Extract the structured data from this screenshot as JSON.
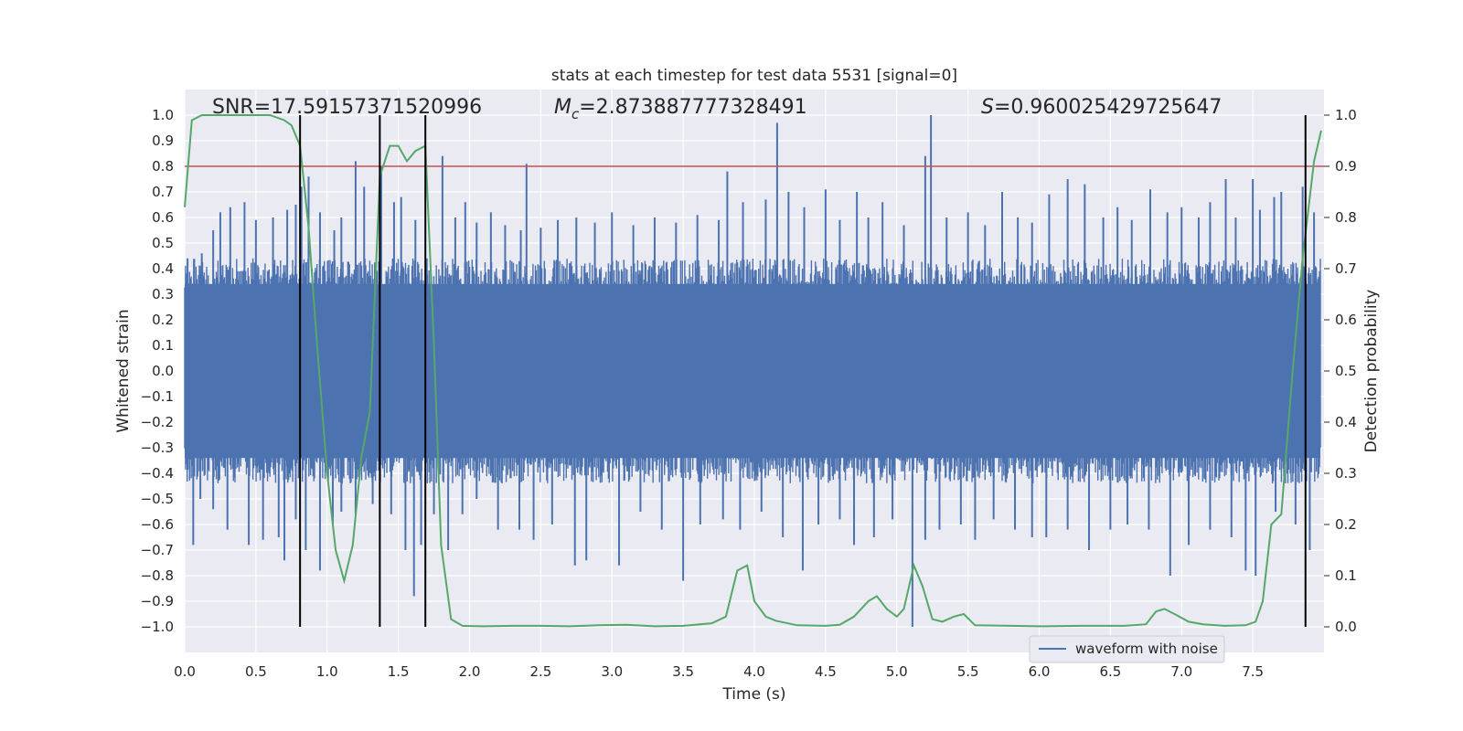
{
  "chart_data": {
    "type": "line",
    "title": "stats at each timestep for test data 5531 [signal=0]",
    "xlabel": "Time (s)",
    "ylabel": "Whitened strain",
    "y2label": "Detection probability",
    "xlim": [
      0.0,
      8.0
    ],
    "ylim": [
      -1.1,
      1.1
    ],
    "y2lim": [
      -0.05,
      1.05
    ],
    "xticks": [
      "0.0",
      "0.5",
      "1.0",
      "1.5",
      "2.0",
      "2.5",
      "3.0",
      "3.5",
      "4.0",
      "4.5",
      "5.0",
      "5.5",
      "6.0",
      "6.5",
      "7.0",
      "7.5"
    ],
    "yticks": [
      "1.0",
      "0.9",
      "0.8",
      "0.7",
      "0.6",
      "0.5",
      "0.4",
      "0.3",
      "0.2",
      "0.1",
      "0.0",
      "-0.1",
      "-0.2",
      "-0.3",
      "-0.4",
      "-0.5",
      "-0.6",
      "-0.7",
      "-0.8",
      "-0.9",
      "-1.0"
    ],
    "y2ticks": [
      "1.0",
      "0.9",
      "0.8",
      "0.7",
      "0.6",
      "0.5",
      "0.4",
      "0.3",
      "0.2",
      "0.1",
      "0.0"
    ],
    "grid": true,
    "legend_position": "lower-right",
    "annotations": {
      "snr": "SNR=17.59157371520996",
      "mc_symbol": "M",
      "mc_sub": "c",
      "mc_value": "=2.873887777328491",
      "s_symbol": "S",
      "s_value": "=0.960025429725647"
    },
    "threshold": {
      "value": 0.9,
      "axis": "y2",
      "color": "#c44e52"
    },
    "vertical_lines": [
      0.81,
      1.37,
      1.69,
      7.87
    ],
    "series": [
      {
        "name": "waveform with noise",
        "color": "#4c72b0",
        "envelope_base": 0.4,
        "spikes_positive": [
          [
            0.02,
            0.44
          ],
          [
            0.12,
            0.46
          ],
          [
            0.2,
            0.55
          ],
          [
            0.25,
            0.62
          ],
          [
            0.32,
            0.64
          ],
          [
            0.42,
            0.66
          ],
          [
            0.5,
            0.59
          ],
          [
            0.62,
            0.6
          ],
          [
            0.72,
            0.63
          ],
          [
            0.78,
            0.65
          ],
          [
            0.82,
            0.72
          ],
          [
            0.87,
            0.76
          ],
          [
            0.95,
            0.62
          ],
          [
            1.05,
            0.55
          ],
          [
            1.1,
            0.6
          ],
          [
            1.2,
            0.82
          ],
          [
            1.26,
            0.72
          ],
          [
            1.38,
            0.8
          ],
          [
            1.47,
            0.66
          ],
          [
            1.52,
            0.68
          ],
          [
            1.62,
            0.59
          ],
          [
            1.7,
            0.44
          ],
          [
            1.81,
            0.84
          ],
          [
            1.9,
            0.6
          ],
          [
            1.97,
            0.66
          ],
          [
            2.05,
            0.58
          ],
          [
            2.15,
            0.62
          ],
          [
            2.25,
            0.57
          ],
          [
            2.36,
            0.55
          ],
          [
            2.4,
            0.81
          ],
          [
            2.5,
            0.56
          ],
          [
            2.62,
            0.59
          ],
          [
            2.75,
            0.6
          ],
          [
            2.88,
            0.58
          ],
          [
            3.0,
            0.62
          ],
          [
            3.15,
            0.57
          ],
          [
            3.3,
            0.6
          ],
          [
            3.45,
            0.58
          ],
          [
            3.6,
            0.61
          ],
          [
            3.75,
            0.59
          ],
          [
            3.81,
            0.78
          ],
          [
            3.92,
            0.66
          ],
          [
            4.08,
            0.67
          ],
          [
            4.16,
            0.97
          ],
          [
            4.24,
            0.7
          ],
          [
            4.35,
            0.64
          ],
          [
            4.5,
            0.71
          ],
          [
            4.6,
            0.59
          ],
          [
            4.72,
            0.7
          ],
          [
            4.8,
            0.6
          ],
          [
            4.9,
            0.66
          ],
          [
            5.05,
            0.57
          ],
          [
            5.2,
            0.84
          ],
          [
            5.24,
            1.0
          ],
          [
            5.35,
            0.6
          ],
          [
            5.5,
            0.62
          ],
          [
            5.62,
            0.57
          ],
          [
            5.74,
            0.7
          ],
          [
            5.85,
            0.6
          ],
          [
            5.95,
            0.58
          ],
          [
            6.07,
            0.69
          ],
          [
            6.2,
            0.75
          ],
          [
            6.32,
            0.73
          ],
          [
            6.45,
            0.6
          ],
          [
            6.55,
            0.64
          ],
          [
            6.65,
            0.59
          ],
          [
            6.78,
            0.71
          ],
          [
            6.9,
            0.62
          ],
          [
            7.0,
            0.64
          ],
          [
            7.12,
            0.6
          ],
          [
            7.2,
            0.66
          ],
          [
            7.31,
            0.75
          ],
          [
            7.38,
            0.6
          ],
          [
            7.5,
            0.75
          ],
          [
            7.55,
            0.63
          ],
          [
            7.65,
            0.68
          ],
          [
            7.7,
            0.7
          ],
          [
            7.85,
            0.72
          ],
          [
            7.93,
            0.62
          ]
        ],
        "spikes_negative": [
          [
            0.06,
            -0.68
          ],
          [
            0.11,
            -0.5
          ],
          [
            0.2,
            -0.54
          ],
          [
            0.3,
            -0.62
          ],
          [
            0.45,
            -0.68
          ],
          [
            0.55,
            -0.66
          ],
          [
            0.66,
            -0.65
          ],
          [
            0.7,
            -0.74
          ],
          [
            0.78,
            -0.58
          ],
          [
            0.85,
            -0.7
          ],
          [
            0.95,
            -0.78
          ],
          [
            1.04,
            -0.6
          ],
          [
            1.1,
            -0.55
          ],
          [
            1.2,
            -0.56
          ],
          [
            1.32,
            -0.52
          ],
          [
            1.45,
            -0.56
          ],
          [
            1.55,
            -0.7
          ],
          [
            1.61,
            -0.88
          ],
          [
            1.66,
            -0.68
          ],
          [
            1.75,
            -0.56
          ],
          [
            1.85,
            -0.7
          ],
          [
            1.95,
            -0.56
          ],
          [
            2.05,
            -0.5
          ],
          [
            2.2,
            -0.62
          ],
          [
            2.35,
            -0.62
          ],
          [
            2.45,
            -0.66
          ],
          [
            2.58,
            -0.6
          ],
          [
            2.74,
            -0.76
          ],
          [
            2.82,
            -0.74
          ],
          [
            3.05,
            -0.76
          ],
          [
            3.2,
            -0.55
          ],
          [
            3.35,
            -0.62
          ],
          [
            3.5,
            -0.82
          ],
          [
            3.62,
            -0.6
          ],
          [
            3.78,
            -0.58
          ],
          [
            3.9,
            -0.62
          ],
          [
            4.05,
            -0.55
          ],
          [
            4.2,
            -0.65
          ],
          [
            4.34,
            -0.78
          ],
          [
            4.45,
            -0.6
          ],
          [
            4.6,
            -0.58
          ],
          [
            4.7,
            -0.68
          ],
          [
            4.84,
            -0.65
          ],
          [
            4.97,
            -0.58
          ],
          [
            5.11,
            -1.0
          ],
          [
            5.2,
            -0.66
          ],
          [
            5.3,
            -0.62
          ],
          [
            5.45,
            -0.6
          ],
          [
            5.55,
            -0.66
          ],
          [
            5.68,
            -0.58
          ],
          [
            5.83,
            -0.62
          ],
          [
            5.95,
            -0.65
          ],
          [
            6.05,
            -0.65
          ],
          [
            6.2,
            -0.62
          ],
          [
            6.35,
            -0.7
          ],
          [
            6.5,
            -0.62
          ],
          [
            6.62,
            -0.6
          ],
          [
            6.77,
            -0.62
          ],
          [
            6.92,
            -0.8
          ],
          [
            7.05,
            -0.68
          ],
          [
            7.2,
            -0.62
          ],
          [
            7.35,
            -0.65
          ],
          [
            7.45,
            -0.78
          ],
          [
            7.52,
            -0.8
          ],
          [
            7.66,
            -0.55
          ],
          [
            7.8,
            -0.6
          ],
          [
            7.9,
            -0.7
          ]
        ]
      },
      {
        "name": "Detection probability",
        "color": "#55a868",
        "axis": "y2",
        "x": [
          0.0,
          0.05,
          0.12,
          0.2,
          0.3,
          0.4,
          0.5,
          0.6,
          0.7,
          0.75,
          0.81,
          0.87,
          0.93,
          1.0,
          1.06,
          1.12,
          1.18,
          1.24,
          1.3,
          1.37,
          1.44,
          1.5,
          1.56,
          1.62,
          1.69,
          1.75,
          1.8,
          1.87,
          1.95,
          2.1,
          2.3,
          2.5,
          2.7,
          2.9,
          3.1,
          3.3,
          3.5,
          3.7,
          3.8,
          3.88,
          3.95,
          4.0,
          4.08,
          4.15,
          4.3,
          4.5,
          4.6,
          4.7,
          4.8,
          4.86,
          4.93,
          5.0,
          5.05,
          5.12,
          5.18,
          5.25,
          5.32,
          5.4,
          5.47,
          5.55,
          5.8,
          6.0,
          6.3,
          6.6,
          6.75,
          6.82,
          6.88,
          6.95,
          7.05,
          7.15,
          7.3,
          7.45,
          7.52,
          7.57,
          7.63,
          7.7,
          7.78,
          7.85,
          7.93,
          7.98
        ],
        "values": [
          0.82,
          0.99,
          1.0,
          1.0,
          1.0,
          1.0,
          1.0,
          1.0,
          0.99,
          0.98,
          0.94,
          0.78,
          0.55,
          0.3,
          0.15,
          0.09,
          0.16,
          0.33,
          0.42,
          0.88,
          0.94,
          0.94,
          0.91,
          0.93,
          0.94,
          0.55,
          0.16,
          0.015,
          0.002,
          0.001,
          0.002,
          0.002,
          0.001,
          0.003,
          0.004,
          0.001,
          0.002,
          0.007,
          0.02,
          0.11,
          0.12,
          0.05,
          0.02,
          0.012,
          0.003,
          0.002,
          0.004,
          0.02,
          0.05,
          0.06,
          0.035,
          0.02,
          0.035,
          0.12,
          0.08,
          0.015,
          0.01,
          0.02,
          0.025,
          0.003,
          0.002,
          0.001,
          0.002,
          0.002,
          0.005,
          0.03,
          0.035,
          0.025,
          0.01,
          0.005,
          0.002,
          0.003,
          0.01,
          0.05,
          0.2,
          0.22,
          0.5,
          0.72,
          0.91,
          0.97
        ]
      }
    ]
  }
}
